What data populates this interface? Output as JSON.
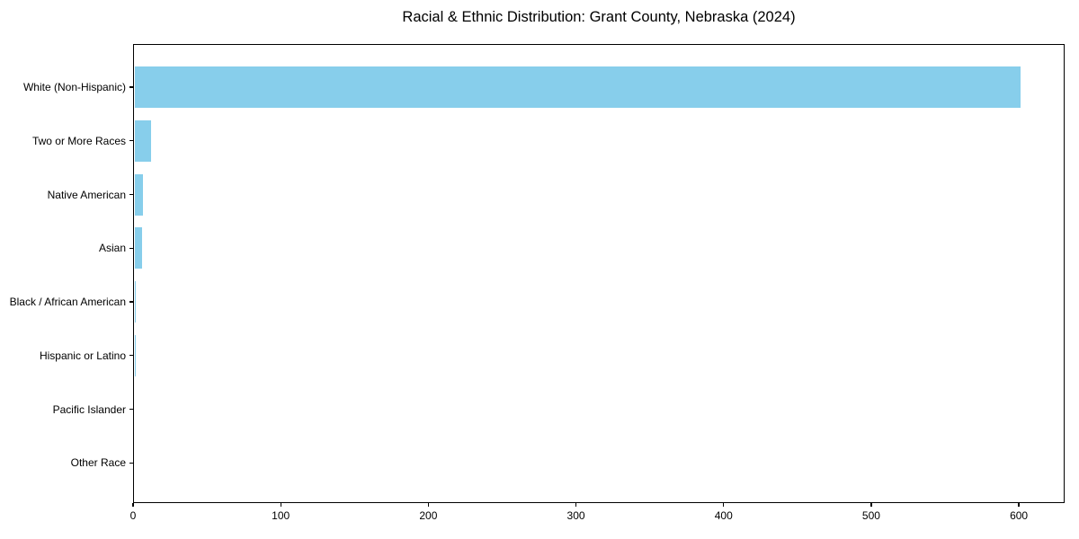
{
  "chart_data": {
    "type": "bar",
    "orientation": "horizontal",
    "title": "Racial & Ethnic Distribution: Grant County, Nebraska (2024)",
    "categories": [
      "White (Non-Hispanic)",
      "Two or More Races",
      "Native American",
      "Asian",
      "Black / African American",
      "Hispanic or Latino",
      "Pacific Islander",
      "Other Race"
    ],
    "values": [
      601,
      12,
      7,
      6,
      1,
      1,
      0,
      0
    ],
    "xlabel": "",
    "ylabel": "",
    "xlim": [
      0,
      631
    ],
    "x_ticks": [
      0,
      100,
      200,
      300,
      400,
      500,
      600
    ],
    "bar_color": "#87CEEB",
    "grid": false,
    "legend": null,
    "background_color": "#ffffff",
    "axis_color": "#000000"
  }
}
